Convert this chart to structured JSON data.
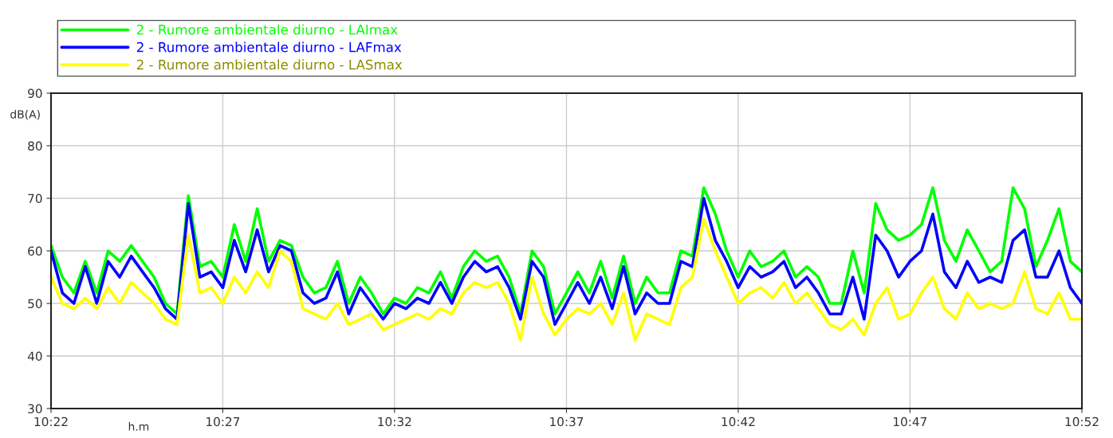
{
  "chart_data": {
    "type": "line",
    "ylabel": "dB(A)",
    "annotations": [
      "h.m"
    ],
    "x": [
      10.3667,
      10.3722,
      10.3778,
      10.3833,
      10.3889,
      10.3944,
      10.4,
      10.4056,
      10.4111,
      10.4167,
      10.4222,
      10.4278,
      10.4333,
      10.4389,
      10.4444,
      10.45,
      10.4556,
      10.4611,
      10.4667,
      10.4722,
      10.4778,
      10.4833,
      10.4889,
      10.4944,
      10.5,
      10.5056,
      10.5111,
      10.5167,
      10.5222,
      10.5278,
      10.5333,
      10.5389,
      10.5444,
      10.55,
      10.5556,
      10.5611,
      10.5667,
      10.5722,
      10.5778,
      10.5833,
      10.5889,
      10.5944,
      10.6,
      10.6056,
      10.6111,
      10.6167,
      10.6222,
      10.6278,
      10.6333,
      10.6389,
      10.6444,
      10.65,
      10.6556,
      10.6611,
      10.6667,
      10.6722,
      10.6778,
      10.6833,
      10.6889,
      10.6944,
      10.7,
      10.7056,
      10.7111,
      10.7167,
      10.7222,
      10.7278,
      10.7333,
      10.7389,
      10.7444,
      10.75,
      10.7556,
      10.7611,
      10.7667,
      10.7722,
      10.7778,
      10.7833,
      10.7889,
      10.7944,
      10.8,
      10.8056,
      10.8111,
      10.8167,
      10.8222,
      10.8278,
      10.8333,
      10.8389,
      10.8444,
      10.85,
      10.8556,
      10.8611,
      10.8667
    ],
    "series": [
      {
        "name": "2 - Rumore ambientale diurno - LAImax",
        "color": "#00ff00",
        "values": [
          61,
          55,
          52,
          58,
          52,
          60,
          58,
          61,
          58,
          55,
          50,
          48,
          70.5,
          57,
          58,
          55,
          65,
          58,
          68,
          58,
          62,
          61,
          55,
          52,
          53,
          58,
          50,
          55,
          52,
          48,
          51,
          50,
          53,
          52,
          56,
          51,
          57,
          60,
          58,
          59,
          55,
          48,
          60,
          57,
          48,
          52,
          56,
          52,
          58,
          51,
          59,
          50,
          55,
          52,
          52,
          60,
          59,
          72,
          67,
          60,
          55,
          60,
          57,
          58,
          60,
          55,
          57,
          55,
          50,
          50,
          60,
          52,
          69,
          64,
          62,
          63,
          65,
          72,
          62,
          58,
          64,
          60,
          56,
          58,
          72,
          68,
          57,
          62,
          68,
          58,
          56
        ]
      },
      {
        "name": "2 - Rumore ambientale diurno - LAFmax",
        "color": "#0000ff",
        "values": [
          60,
          52,
          50,
          57,
          50,
          58,
          55,
          59,
          56,
          53,
          49,
          47,
          69,
          55,
          56,
          53,
          62,
          56,
          64,
          56,
          61,
          60,
          52,
          50,
          51,
          56,
          48,
          53,
          50,
          47,
          50,
          49,
          51,
          50,
          54,
          50,
          55,
          58,
          56,
          57,
          53,
          47,
          58,
          55,
          46,
          50,
          54,
          50,
          55,
          49,
          57,
          48,
          52,
          50,
          50,
          58,
          57,
          70,
          62,
          58,
          53,
          57,
          55,
          56,
          58,
          53,
          55,
          52,
          48,
          48,
          55,
          47,
          63,
          60,
          55,
          58,
          60,
          67,
          56,
          53,
          58,
          54,
          55,
          54,
          62,
          64,
          55,
          55,
          60,
          53,
          50
        ]
      },
      {
        "name": "2 - Rumore ambientale diurno - LASmax",
        "color": "#ffff00",
        "values": [
          55,
          50,
          49,
          51,
          49,
          53,
          50,
          54,
          52,
          50,
          47,
          46,
          63,
          52,
          53,
          50,
          55,
          52,
          56,
          53,
          60,
          58,
          49,
          48,
          47,
          50,
          46,
          47,
          48,
          45,
          46,
          47,
          48,
          47,
          49,
          48,
          52,
          54,
          53,
          54,
          50,
          43,
          55,
          48,
          44,
          47,
          49,
          48,
          50,
          46,
          52,
          43,
          48,
          47,
          46,
          53,
          55,
          66,
          60,
          55,
          50,
          52,
          53,
          51,
          54,
          50,
          52,
          49,
          46,
          45,
          47,
          44,
          50,
          53,
          47,
          48,
          52,
          55,
          49,
          47,
          52,
          49,
          50,
          49,
          50,
          56,
          49,
          48,
          52,
          47,
          47
        ]
      }
    ],
    "xlim": [
      10.3667,
      10.8667
    ],
    "xticks": [
      {
        "value": 10.3667,
        "label": "10:22"
      },
      {
        "value": 10.45,
        "label": "10:27"
      },
      {
        "value": 10.5333,
        "label": "10:32"
      },
      {
        "value": 10.6167,
        "label": "10:37"
      },
      {
        "value": 10.7,
        "label": "10:42"
      },
      {
        "value": 10.7833,
        "label": "10:47"
      },
      {
        "value": 10.8667,
        "label": "10:52"
      }
    ],
    "ylim": [
      30,
      90
    ],
    "yticks": [
      30,
      40,
      50,
      60,
      70,
      80,
      90
    ],
    "grid": true,
    "legend": "top",
    "line_style": "solid",
    "marker": "none"
  }
}
